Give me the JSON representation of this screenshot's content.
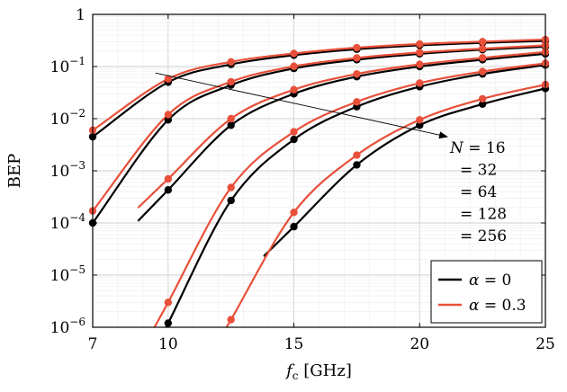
{
  "chart_data": {
    "type": "line",
    "xlabel": "f",
    "xlabel_sub": "c",
    "xlabel_unit": " [GHz]",
    "ylabel": "BEP",
    "xlim": [
      7,
      25
    ],
    "ylim": [
      1e-06,
      1
    ],
    "yscale": "log",
    "grid": true,
    "x_ticks": [
      7,
      10,
      15,
      20,
      25
    ],
    "x_tick_labels": [
      "7",
      "10",
      "15",
      "20",
      "25"
    ],
    "y_ticks": [
      {
        "value": 1,
        "base": "1",
        "exp": ""
      },
      {
        "value": 0.1,
        "base": "10",
        "exp": "−1"
      },
      {
        "value": 0.01,
        "base": "10",
        "exp": "−2"
      },
      {
        "value": 0.001,
        "base": "10",
        "exp": "−3"
      },
      {
        "value": 0.0001,
        "base": "10",
        "exp": "−4"
      },
      {
        "value": 1e-05,
        "base": "10",
        "exp": "−5"
      },
      {
        "value": 1e-06,
        "base": "10",
        "exp": "−6"
      }
    ],
    "marker_x": [
      7,
      10,
      12.5,
      15,
      17.5,
      20,
      22.5,
      25
    ],
    "legend": {
      "position": "bottom-right",
      "entries": [
        {
          "label": "α = 0",
          "color": "#000000"
        },
        {
          "label": "α = 0.3",
          "color": "#e8503a"
        }
      ]
    },
    "annotation": {
      "arrow": {
        "from": [
          9.5,
          0.075
        ],
        "to": [
          21.1,
          0.0045
        ]
      },
      "lines": [
        "N = 16",
        "= 32",
        "= 64",
        "= 128",
        "= 256"
      ]
    },
    "series": [
      {
        "N": 16,
        "alpha": 0,
        "color": "#000000",
        "x": [
          7,
          10,
          12.5,
          15,
          17.5,
          20,
          22.5,
          25
        ],
        "y": [
          0.0045,
          0.05,
          0.11,
          0.165,
          0.215,
          0.255,
          0.285,
          0.31
        ]
      },
      {
        "N": 16,
        "alpha": 0.3,
        "color": "#e8503a",
        "x": [
          7,
          10,
          12.5,
          15,
          17.5,
          20,
          22.5,
          25
        ],
        "y": [
          0.006,
          0.058,
          0.123,
          0.178,
          0.23,
          0.27,
          0.3,
          0.33
        ]
      },
      {
        "N": 32,
        "alpha": 0,
        "color": "#000000",
        "x": [
          7,
          10,
          12.5,
          15,
          17.5,
          20,
          22.5,
          25
        ],
        "y": [
          0.0001,
          0.0095,
          0.044,
          0.092,
          0.135,
          0.175,
          0.21,
          0.24
        ]
      },
      {
        "N": 32,
        "alpha": 0.3,
        "color": "#e8503a",
        "x": [
          7,
          10,
          12.5,
          15,
          17.5,
          20,
          22.5,
          25
        ],
        "y": [
          0.00017,
          0.012,
          0.051,
          0.101,
          0.146,
          0.186,
          0.22,
          0.255
        ]
      },
      {
        "N": 64,
        "alpha": 0,
        "color": "#000000",
        "x": [
          10,
          12.5,
          15,
          17.5,
          20,
          22.5,
          25
        ],
        "y": [
          0.00043,
          0.0075,
          0.03,
          0.064,
          0.1,
          0.135,
          0.175
        ]
      },
      {
        "N": 64,
        "alpha": 0.3,
        "color": "#e8503a",
        "x": [
          10,
          12.5,
          15,
          17.5,
          20,
          22.5,
          25
        ],
        "y": [
          0.0007,
          0.01,
          0.036,
          0.072,
          0.11,
          0.147,
          0.19
        ]
      },
      {
        "N": 128,
        "alpha": 0,
        "color": "#000000",
        "x": [
          10,
          12.5,
          15,
          17.5,
          20,
          22.5,
          25
        ],
        "y": [
          1.2e-06,
          0.00027,
          0.004,
          0.017,
          0.041,
          0.072,
          0.107
        ]
      },
      {
        "N": 128,
        "alpha": 0.3,
        "color": "#e8503a",
        "x": [
          10,
          12.5,
          15,
          17.5,
          20,
          22.5,
          25
        ],
        "y": [
          3e-06,
          0.00048,
          0.0056,
          0.021,
          0.048,
          0.08,
          0.115
        ]
      },
      {
        "N": 256,
        "alpha": 0,
        "color": "#000000",
        "x": [
          15,
          17.5,
          20,
          22.5,
          25
        ],
        "y": [
          8.5e-05,
          0.0013,
          0.0075,
          0.019,
          0.038
        ]
      },
      {
        "N": 256,
        "alpha": 0.3,
        "color": "#e8503a",
        "x": [
          12.5,
          15,
          17.5,
          20,
          22.5,
          25
        ],
        "y": [
          1.4e-06,
          0.00016,
          0.002,
          0.0095,
          0.024,
          0.045
        ]
      }
    ]
  }
}
